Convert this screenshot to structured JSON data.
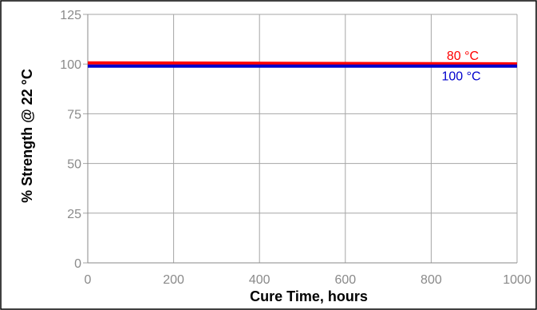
{
  "chart_data": {
    "type": "line",
    "title": "",
    "xlabel": "Cure Time, hours",
    "ylabel": "% Strength @ 22 °C",
    "xlim": [
      0,
      1000
    ],
    "ylim": [
      0,
      125
    ],
    "x_ticks": [
      "0",
      "200",
      "400",
      "600",
      "800",
      "1000"
    ],
    "y_ticks": [
      "0",
      "25",
      "50",
      "75",
      "100",
      "125"
    ],
    "grid": true,
    "series": [
      {
        "name": "80 °C",
        "color": "#ff0000",
        "x": [
          0,
          1000
        ],
        "y": [
          100.6,
          100.1
        ]
      },
      {
        "name": "100 °C",
        "color": "#0000cc",
        "x": [
          0,
          1000
        ],
        "y": [
          99,
          99
        ]
      }
    ]
  }
}
